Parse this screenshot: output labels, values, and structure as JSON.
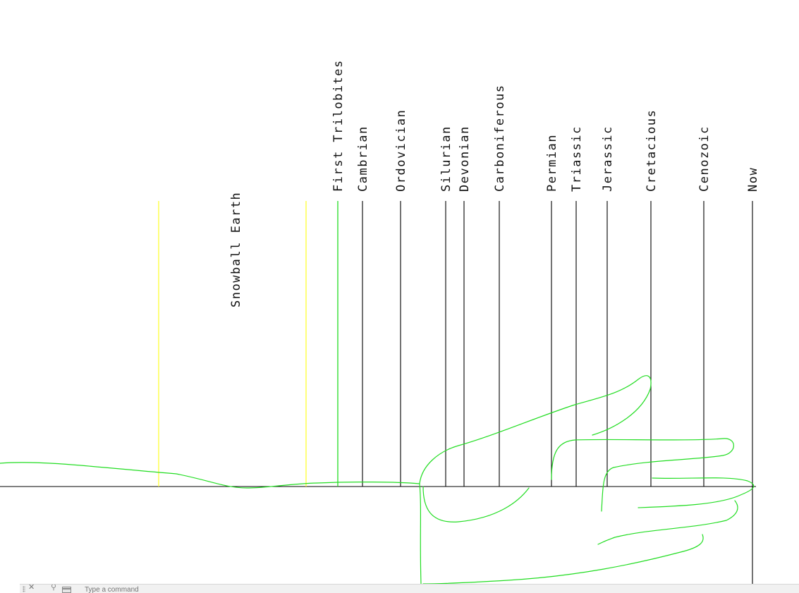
{
  "timeline": {
    "line_color": "#000000",
    "marker_color_default": "#000000",
    "accent_colors": {
      "yellow": "#ffff33",
      "green": "#22dd22"
    },
    "markers": [
      {
        "label": "",
        "color": "yellow"
      },
      {
        "label": "",
        "color": "yellow"
      },
      {
        "label": "First Trilobites",
        "color": "green"
      },
      {
        "label": "Cambrian",
        "color": "black"
      },
      {
        "label": "Ordovician",
        "color": "black"
      },
      {
        "label": "Silurian",
        "color": "black"
      },
      {
        "label": "Devonian",
        "color": "black"
      },
      {
        "label": "Carboniferous",
        "color": "black"
      },
      {
        "label": "Permian",
        "color": "black"
      },
      {
        "label": "Triassic",
        "color": "black"
      },
      {
        "label": "Jerassic",
        "color": "black"
      },
      {
        "label": "Cretacious",
        "color": "black"
      },
      {
        "label": "Cenozoic",
        "color": "black"
      },
      {
        "label": "Now",
        "color": "black"
      }
    ],
    "snowball_label": "Snowball Earth"
  },
  "sketch": {
    "stroke_color": "#22dd22",
    "description_icon": "hand-sketch"
  },
  "command_line": {
    "placeholder": "Type a command",
    "close_icon": "close-icon",
    "customize_icon": "wrench-icon",
    "recent_icon": "recent-commands-icon"
  }
}
